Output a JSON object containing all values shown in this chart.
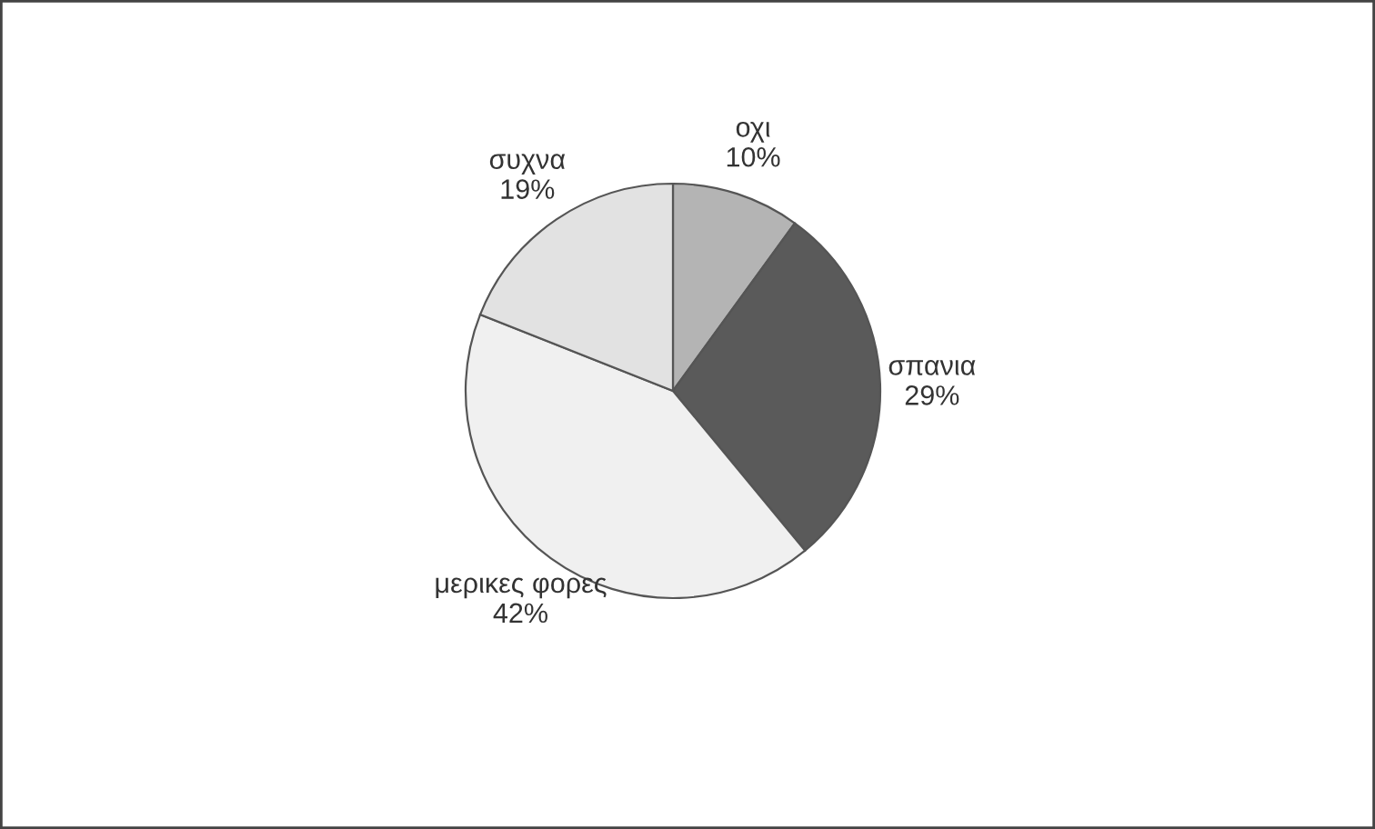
{
  "chart_data": {
    "type": "pie",
    "categories": [
      "οχι",
      "σπανια",
      "μερικες φορες",
      "συχνα"
    ],
    "values": [
      10,
      29,
      42,
      19
    ],
    "value_labels": [
      "10%",
      "29%",
      "42%",
      "19%"
    ],
    "colors": [
      "#b4b4b4",
      "#5a5a5a",
      "#f0f0f0",
      "#e2e2e2"
    ]
  }
}
